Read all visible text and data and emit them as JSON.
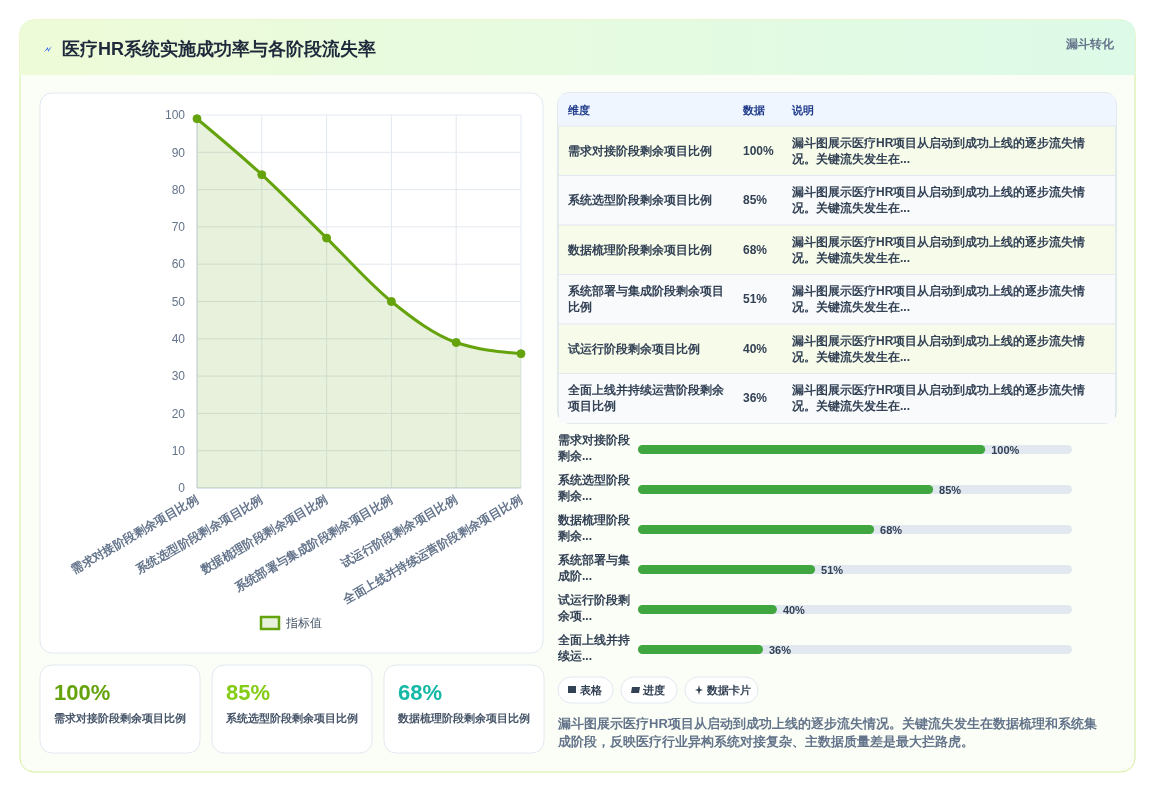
{
  "chart_data": [
    {
      "type": "other",
      "title": "医疗HR系统实施成功率与各阶段流失率",
      "subtitle": "漏斗转化"
    },
    {
      "type": "area",
      "categories": [
        "需求对接阶段剩余项目比例",
        "系统选型阶段剩余项目比例",
        "数据梳理阶段剩余项目比例",
        "系统部署与集成阶段剩余项目比例",
        "试运行阶段剩余项目比例",
        "全面上线并持续运营阶段剩余项目比例"
      ],
      "series": [
        {
          "name": "指标值",
          "color": "#65a30d",
          "values": [
            99,
            84,
            67,
            50,
            39,
            36
          ]
        }
      ],
      "ylim": [
        0,
        100
      ],
      "yticks": [
        0,
        10,
        20,
        30,
        40,
        50,
        60,
        70,
        80,
        90,
        100
      ],
      "grid": true,
      "legend": "bottom",
      "marker": "circle"
    },
    {
      "type": "other",
      "annotations": [
        "维度",
        "数据",
        "说明",
        "需求对接阶段剩余项目比例",
        "100%",
        "漏斗图展示医疗HR项目从启动到成功上线的逐步流失情况。关键流失发生在...",
        "系统选型阶段剩余项目比例",
        "85%",
        "漏斗图展示医疗HR项目从启动到成功上线的逐步流失情况。关键流失发生在...",
        "数据梳理阶段剩余项目比例",
        "68%",
        "漏斗图展示医疗HR项目从启动到成功上线的逐步流失情况。关键流失发生在...",
        "系统部署与集成阶段剩余项目比例",
        "51%",
        "漏斗图展示医疗HR项目从启动到成功上线的逐步流失情况。关键流失发生在...",
        "试运行阶段剩余项目比例",
        "40%",
        "漏斗图展示医疗HR项目从启动到成功上线的逐步流失情况。关键流失发生在...",
        "全面上线并持续运营阶段剩余项目比例",
        "36%",
        "漏斗图展示医疗HR项目从启动到成功上线的逐步流失情况。关键流失发生在..."
      ]
    },
    {
      "type": "bar",
      "orientation": "horizontal",
      "categories": [
        "需求对接阶段剩余...",
        "系统选型阶段剩余...",
        "数据梳理阶段剩余...",
        "系统部署与集成阶...",
        "试运行阶段剩余项...",
        "全面上线并持续运..."
      ],
      "values": [
        100,
        85,
        68,
        51,
        40,
        36
      ],
      "value_labels": [
        "100%",
        "85%",
        "68%",
        "51%",
        "40%",
        "36%"
      ],
      "color": "#3fa640"
    },
    {
      "type": "other",
      "annotations": [
        "100%",
        "需求对接阶段剩余项目比例",
        "85%",
        "系统选型阶段剩余项目比例",
        "68%",
        "数据梳理阶段剩余项目比例"
      ],
      "colors": [
        "#65a30d",
        "#84cc16",
        "#14b8a6"
      ]
    },
    {
      "type": "other",
      "annotations": [
        "表格",
        "进度",
        "数据卡片",
        "漏斗图展示医疗HR项目从启动到成功上线的逐步流失情况。关键流失发生在数据梳理和系统集成阶段，反映医疗行业异构系统对接复杂、主数据质量差是最大拦路虎。"
      ]
    }
  ]
}
